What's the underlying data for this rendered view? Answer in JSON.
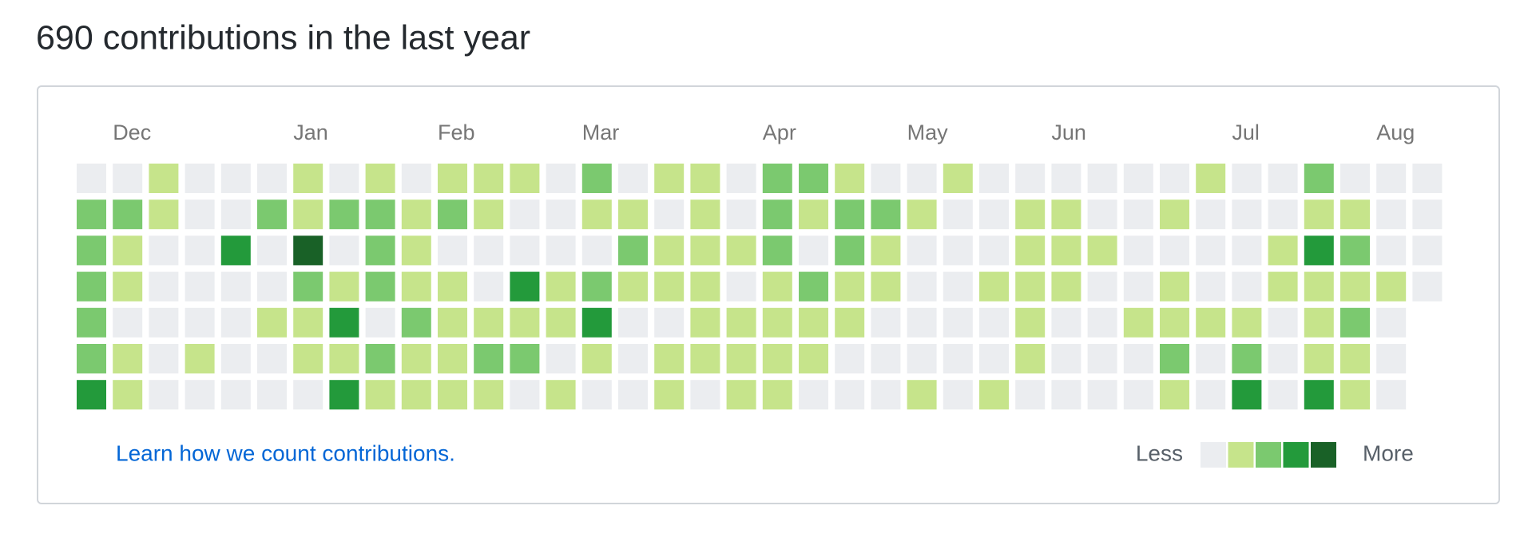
{
  "header": {
    "title": "690 contributions in the last year"
  },
  "months": [
    "Dec",
    "Jan",
    "Feb",
    "Mar",
    "Apr",
    "May",
    "Jun",
    "Jul",
    "Aug"
  ],
  "level_colors": [
    "#ebedf0",
    "#c6e48b",
    "#7bc96f",
    "#239a3b",
    "#196127"
  ],
  "rows": [
    [
      0,
      0,
      1,
      0,
      0,
      0,
      1,
      0,
      1,
      0,
      1,
      1,
      1,
      0,
      2,
      0,
      1,
      1,
      0,
      2,
      2,
      1,
      0,
      0,
      1,
      0,
      0,
      0,
      0,
      0,
      0,
      1,
      0,
      0,
      2,
      0,
      0,
      0
    ],
    [
      2,
      2,
      1,
      0,
      0,
      2,
      1,
      2,
      2,
      1,
      2,
      1,
      0,
      0,
      1,
      1,
      0,
      1,
      0,
      2,
      1,
      2,
      2,
      1,
      0,
      0,
      1,
      1,
      0,
      0,
      1,
      0,
      0,
      0,
      1,
      1,
      0,
      0
    ],
    [
      2,
      1,
      0,
      0,
      3,
      0,
      4,
      0,
      2,
      1,
      0,
      0,
      0,
      0,
      0,
      2,
      1,
      1,
      1,
      2,
      0,
      2,
      1,
      0,
      0,
      0,
      1,
      1,
      1,
      0,
      0,
      0,
      0,
      1,
      3,
      2,
      0,
      0
    ],
    [
      2,
      1,
      0,
      0,
      0,
      0,
      2,
      1,
      2,
      1,
      1,
      0,
      3,
      1,
      2,
      1,
      1,
      1,
      0,
      1,
      2,
      1,
      1,
      0,
      0,
      1,
      1,
      1,
      0,
      0,
      1,
      0,
      0,
      1,
      1,
      1,
      1,
      0
    ],
    [
      2,
      0,
      0,
      0,
      0,
      1,
      1,
      3,
      0,
      2,
      1,
      1,
      1,
      1,
      3,
      0,
      0,
      1,
      1,
      1,
      1,
      1,
      0,
      0,
      0,
      0,
      1,
      0,
      0,
      1,
      1,
      1,
      1,
      0,
      1,
      2,
      0
    ],
    [
      2,
      1,
      0,
      1,
      0,
      0,
      1,
      1,
      2,
      1,
      1,
      2,
      2,
      0,
      1,
      0,
      1,
      1,
      1,
      1,
      1,
      0,
      0,
      0,
      0,
      0,
      1,
      0,
      0,
      0,
      2,
      0,
      2,
      0,
      1,
      1,
      0
    ],
    [
      3,
      1,
      0,
      0,
      0,
      0,
      0,
      3,
      1,
      1,
      1,
      1,
      0,
      1,
      0,
      0,
      1,
      0,
      1,
      1,
      0,
      0,
      0,
      1,
      0,
      1,
      0,
      0,
      0,
      0,
      1,
      0,
      3,
      0,
      3,
      1,
      0
    ]
  ],
  "footer": {
    "link": "Learn how we count contributions.",
    "less": "Less",
    "more": "More"
  }
}
